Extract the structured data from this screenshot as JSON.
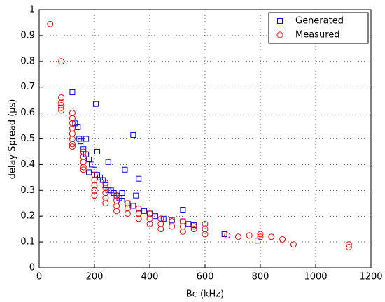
{
  "chart_data": {
    "type": "scatter",
    "xlabel": "Bc (kHz)",
    "ylabel": "delay Spread (μs)",
    "xlim": [
      0,
      1200
    ],
    "xticks": [
      0,
      200,
      400,
      600,
      800,
      1000,
      1200
    ],
    "ylim": [
      0,
      1
    ],
    "yticks": [
      0,
      0.1,
      0.2,
      0.3,
      0.4,
      0.5,
      0.6,
      0.7,
      0.8,
      0.9,
      1
    ],
    "grid": true,
    "legend": "upper right",
    "series": [
      {
        "name": "Generated",
        "color": "#0000ff",
        "marker": "square",
        "x": [
          120,
          205,
          340,
          130,
          140,
          145,
          150,
          160,
          170,
          180,
          190,
          200,
          210,
          220,
          230,
          240,
          250,
          260,
          270,
          280,
          290,
          300,
          310,
          320,
          340,
          360,
          360,
          380,
          400,
          420,
          450,
          480,
          520,
          520,
          540,
          560,
          580,
          670,
          790,
          250,
          300,
          350,
          170,
          210,
          180
        ],
        "values": [
          0.68,
          0.635,
          0.515,
          0.56,
          0.545,
          0.5,
          0.49,
          0.46,
          0.44,
          0.42,
          0.4,
          0.38,
          0.36,
          0.35,
          0.34,
          0.32,
          0.41,
          0.3,
          0.29,
          0.28,
          0.27,
          0.26,
          0.38,
          0.25,
          0.24,
          0.345,
          0.23,
          0.22,
          0.21,
          0.2,
          0.19,
          0.185,
          0.225,
          0.18,
          0.17,
          0.165,
          0.16,
          0.13,
          0.105,
          0.3,
          0.29,
          0.28,
          0.5,
          0.45,
          0.37
        ]
      },
      {
        "name": "Measured",
        "color": "#ff0000",
        "marker": "circle",
        "x": [
          40,
          80,
          80,
          80,
          80,
          80,
          80,
          120,
          120,
          120,
          120,
          120,
          120,
          120,
          120,
          160,
          160,
          160,
          160,
          160,
          200,
          200,
          200,
          200,
          200,
          240,
          240,
          240,
          240,
          240,
          280,
          280,
          280,
          280,
          320,
          320,
          320,
          360,
          360,
          360,
          400,
          400,
          400,
          440,
          440,
          440,
          480,
          480,
          520,
          520,
          520,
          560,
          560,
          600,
          600,
          600,
          680,
          720,
          760,
          800,
          800,
          840,
          880,
          920,
          1120,
          1120
        ],
        "values": [
          0.945,
          0.8,
          0.66,
          0.64,
          0.63,
          0.62,
          0.61,
          0.6,
          0.58,
          0.56,
          0.54,
          0.52,
          0.5,
          0.48,
          0.47,
          0.45,
          0.43,
          0.41,
          0.39,
          0.38,
          0.36,
          0.34,
          0.32,
          0.3,
          0.28,
          0.33,
          0.31,
          0.29,
          0.27,
          0.25,
          0.28,
          0.26,
          0.24,
          0.22,
          0.25,
          0.23,
          0.21,
          0.23,
          0.21,
          0.19,
          0.21,
          0.19,
          0.17,
          0.19,
          0.17,
          0.15,
          0.18,
          0.16,
          0.18,
          0.16,
          0.14,
          0.16,
          0.15,
          0.17,
          0.15,
          0.13,
          0.125,
          0.12,
          0.125,
          0.12,
          0.13,
          0.12,
          0.11,
          0.09,
          0.09,
          0.08
        ]
      }
    ]
  }
}
